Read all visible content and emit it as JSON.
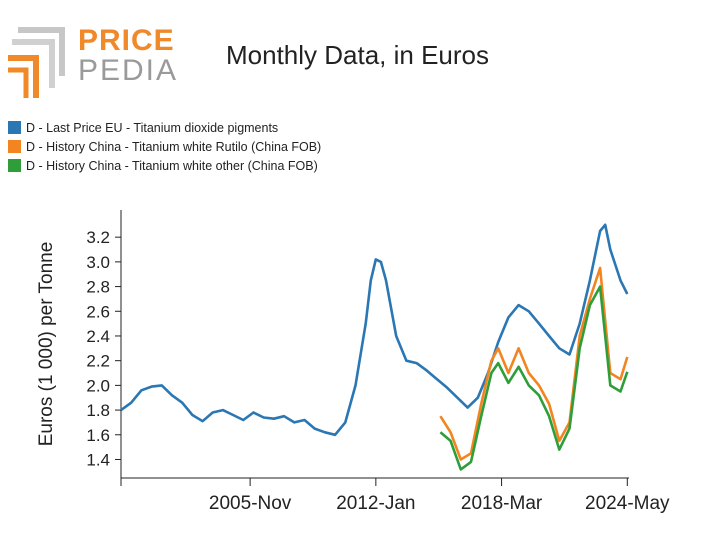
{
  "logo": {
    "word_top": "PRICE",
    "word_bottom": "PEDIA"
  },
  "colors": {
    "series1": "#2a77b4",
    "series2": "#f28520",
    "series3": "#2f9e3a",
    "logo_orange": "#f0892a",
    "logo_gray": "#9a9a9a"
  },
  "chart_data": {
    "type": "line",
    "title": "Monthly Data, in Euros",
    "ylabel": "Euros (1 000) per Tonne",
    "xlabel": "",
    "ylim": [
      1.25,
      3.42
    ],
    "x_range": [
      "1999-07",
      "2024-06"
    ],
    "x_ticks": [
      {
        "date": "2005-11",
        "label": "2005-Nov"
      },
      {
        "date": "2012-01",
        "label": "2012-Jan"
      },
      {
        "date": "2018-03",
        "label": "2018-Mar"
      },
      {
        "date": "2024-05",
        "label": "2024-May"
      }
    ],
    "y_ticks": [
      "1.4",
      "1.6",
      "1.8",
      "2.0",
      "2.2",
      "2.4",
      "2.6",
      "2.8",
      "3.0",
      "3.2"
    ],
    "grid": false,
    "legend_position": "top-left",
    "series": [
      {
        "name": "D - Last Price EU - Titanium dioxide pigments",
        "color": "#2a77b4",
        "points": [
          [
            "1999-07",
            1.8
          ],
          [
            "2000-01",
            1.86
          ],
          [
            "2000-07",
            1.96
          ],
          [
            "2001-01",
            1.99
          ],
          [
            "2001-07",
            2.0
          ],
          [
            "2002-01",
            1.92
          ],
          [
            "2002-07",
            1.86
          ],
          [
            "2003-01",
            1.76
          ],
          [
            "2003-07",
            1.71
          ],
          [
            "2004-01",
            1.78
          ],
          [
            "2004-07",
            1.8
          ],
          [
            "2005-01",
            1.76
          ],
          [
            "2005-07",
            1.72
          ],
          [
            "2006-01",
            1.78
          ],
          [
            "2006-07",
            1.74
          ],
          [
            "2007-01",
            1.73
          ],
          [
            "2007-07",
            1.75
          ],
          [
            "2008-01",
            1.7
          ],
          [
            "2008-07",
            1.72
          ],
          [
            "2009-01",
            1.65
          ],
          [
            "2009-07",
            1.62
          ],
          [
            "2010-01",
            1.6
          ],
          [
            "2010-07",
            1.7
          ],
          [
            "2011-01",
            2.0
          ],
          [
            "2011-07",
            2.5
          ],
          [
            "2011-10",
            2.85
          ],
          [
            "2012-01",
            3.02
          ],
          [
            "2012-04",
            3.0
          ],
          [
            "2012-07",
            2.85
          ],
          [
            "2013-01",
            2.4
          ],
          [
            "2013-07",
            2.2
          ],
          [
            "2014-01",
            2.18
          ],
          [
            "2014-07",
            2.12
          ],
          [
            "2015-01",
            2.05
          ],
          [
            "2015-07",
            1.98
          ],
          [
            "2016-01",
            1.9
          ],
          [
            "2016-07",
            1.82
          ],
          [
            "2017-01",
            1.9
          ],
          [
            "2017-07",
            2.1
          ],
          [
            "2018-01",
            2.35
          ],
          [
            "2018-07",
            2.55
          ],
          [
            "2019-01",
            2.65
          ],
          [
            "2019-07",
            2.6
          ],
          [
            "2020-01",
            2.5
          ],
          [
            "2020-07",
            2.4
          ],
          [
            "2021-01",
            2.3
          ],
          [
            "2021-07",
            2.25
          ],
          [
            "2022-01",
            2.5
          ],
          [
            "2022-07",
            2.85
          ],
          [
            "2023-01",
            3.25
          ],
          [
            "2023-04",
            3.3
          ],
          [
            "2023-07",
            3.1
          ],
          [
            "2024-01",
            2.85
          ],
          [
            "2024-05",
            2.74
          ]
        ]
      },
      {
        "name": "D - History China - Titanium white Rutilo (China FOB)",
        "color": "#f28520",
        "points": [
          [
            "2015-03",
            1.75
          ],
          [
            "2015-09",
            1.62
          ],
          [
            "2016-03",
            1.4
          ],
          [
            "2016-09",
            1.45
          ],
          [
            "2017-03",
            1.85
          ],
          [
            "2017-09",
            2.2
          ],
          [
            "2018-01",
            2.3
          ],
          [
            "2018-07",
            2.1
          ],
          [
            "2019-01",
            2.3
          ],
          [
            "2019-07",
            2.1
          ],
          [
            "2020-01",
            2.0
          ],
          [
            "2020-07",
            1.85
          ],
          [
            "2021-01",
            1.55
          ],
          [
            "2021-07",
            1.7
          ],
          [
            "2022-01",
            2.4
          ],
          [
            "2022-07",
            2.7
          ],
          [
            "2023-01",
            2.95
          ],
          [
            "2023-07",
            2.1
          ],
          [
            "2024-01",
            2.05
          ],
          [
            "2024-05",
            2.23
          ]
        ]
      },
      {
        "name": "D - History China - Titanium white other (China FOB)",
        "color": "#2f9e3a",
        "points": [
          [
            "2015-03",
            1.62
          ],
          [
            "2015-09",
            1.55
          ],
          [
            "2016-03",
            1.32
          ],
          [
            "2016-09",
            1.38
          ],
          [
            "2017-03",
            1.75
          ],
          [
            "2017-09",
            2.1
          ],
          [
            "2018-01",
            2.18
          ],
          [
            "2018-07",
            2.02
          ],
          [
            "2019-01",
            2.15
          ],
          [
            "2019-07",
            2.0
          ],
          [
            "2020-01",
            1.92
          ],
          [
            "2020-07",
            1.75
          ],
          [
            "2021-01",
            1.48
          ],
          [
            "2021-07",
            1.65
          ],
          [
            "2022-01",
            2.3
          ],
          [
            "2022-07",
            2.65
          ],
          [
            "2023-01",
            2.8
          ],
          [
            "2023-07",
            2.0
          ],
          [
            "2024-01",
            1.95
          ],
          [
            "2024-05",
            2.11
          ]
        ]
      }
    ]
  }
}
